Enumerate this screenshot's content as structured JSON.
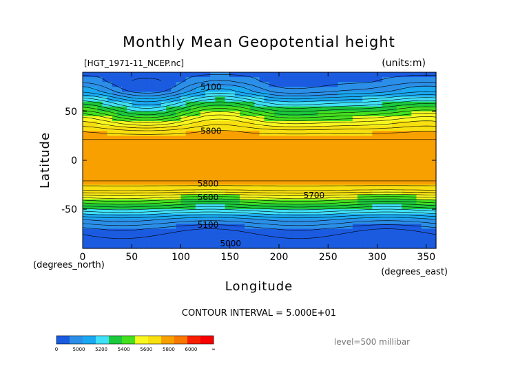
{
  "chart_data": {
    "type": "heatmap",
    "title": "Monthly Mean Geopotential height",
    "file_label": "[HGT_1971-11_NCEP.nc]",
    "units_label": "(units:m)",
    "xlabel": "Longitude",
    "ylabel": "Latitude",
    "x_unit_label": "(degrees_east)",
    "y_unit_label": "(degrees_north)",
    "xlim": [
      0,
      360
    ],
    "ylim": [
      -90,
      90
    ],
    "x_ticks": [
      0,
      50,
      100,
      150,
      200,
      250,
      300,
      350
    ],
    "y_ticks": [
      50,
      0,
      -50
    ],
    "contour_interval_text": "CONTOUR INTERVAL = 5.000E+01",
    "level_text": "level=500 millibar",
    "colorbar": {
      "tick_labels": [
        "0",
        "5000",
        "5200",
        "5400",
        "5600",
        "5800",
        "6000",
        "∞"
      ],
      "colors": [
        "#1a5be0",
        "#2b8fe8",
        "#1aa8f0",
        "#40e0f8",
        "#1cc83c",
        "#44e020",
        "#f8f820",
        "#f8e010",
        "#f8a000",
        "#f87800",
        "#f82000",
        "#f80000"
      ]
    },
    "zonal_profile": {
      "lat": [
        90,
        80,
        70,
        60,
        50,
        40,
        30,
        20,
        10,
        0,
        -10,
        -20,
        -30,
        -40,
        -50,
        -60,
        -70,
        -80,
        -90
      ],
      "hgt": [
        5080,
        5100,
        5180,
        5350,
        5500,
        5650,
        5780,
        5860,
        5880,
        5880,
        5880,
        5860,
        5760,
        5560,
        5380,
        5200,
        5080,
        5020,
        5000
      ]
    },
    "contour_labels": [
      {
        "text": "5100",
        "lon": 120,
        "lat": 75
      },
      {
        "text": "5800",
        "lon": 120,
        "lat": 30
      },
      {
        "text": "5800",
        "lon": 117,
        "lat": -24
      },
      {
        "text": "5700",
        "lon": 225,
        "lat": -36
      },
      {
        "text": "5600",
        "lon": 117,
        "lat": -38
      },
      {
        "text": "5100",
        "lon": 117,
        "lat": -66
      },
      {
        "text": "5000",
        "lon": 140,
        "lat": -85
      }
    ]
  }
}
